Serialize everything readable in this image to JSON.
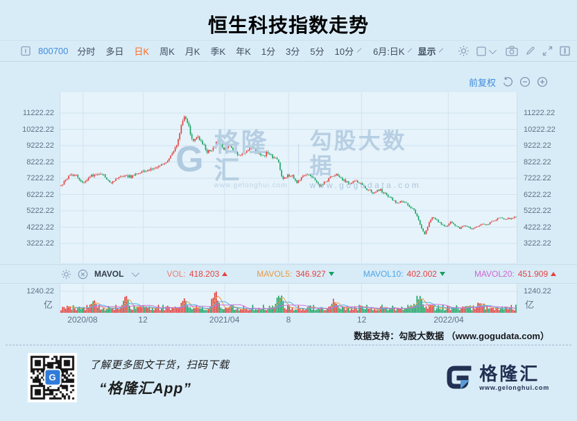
{
  "title": "恒生科技指数走势",
  "toolbar": {
    "symbol": "800700",
    "items": [
      "分时",
      "多日",
      "日K",
      "周K",
      "月K",
      "季K",
      "年K",
      "1分",
      "3分",
      "5分",
      "10分"
    ],
    "active_item": "日K",
    "period_selector": "6月:日K",
    "display_label": "显示"
  },
  "chart_header": {
    "adjust_label": "前复权"
  },
  "watermark": {
    "logo_letter": "G",
    "brand": "格隆汇",
    "brand_url": "www.gelonghui.com",
    "product": "勾股大数据",
    "product_url": "www.gogudata.com"
  },
  "indicators": {
    "name": "MAVOL",
    "vol_label": "VOL:",
    "vol_value": "418.203",
    "mavol5_label": "MAVOL5:",
    "mavol5_value": "346.927",
    "mavol10_label": "MAVOL10:",
    "mavol10_value": "402.002",
    "mavol20_label": "MAVOL20:",
    "mavol20_value": "451.909"
  },
  "volume_axis": {
    "max_label": "1240.22",
    "unit": "亿"
  },
  "support_line": "数据支持：勾股大数据 （www.gogudata.com）",
  "footer": {
    "qr_caption_line1": "了解更多图文干货，扫码下载",
    "qr_caption_line2": "“格隆汇App”",
    "qr_logo_letter": "G",
    "logo_letter": "G",
    "logo_text": "格隆汇",
    "logo_url": "www.gelonghui.com"
  },
  "colors": {
    "up": "#e23a36",
    "down": "#14a05e",
    "grid": "#cfe3ef",
    "accent_blue": "#3f8cdb",
    "active_orange": "#ff6a1e",
    "ma5": "#f09a3c",
    "ma10": "#4fb0ea",
    "ma20": "#cd72d8",
    "icon_gray": "#8aa0b8"
  },
  "chart_data": {
    "type": "candlestick",
    "title": "恒生科技指数走势",
    "x_range": [
      "2020/07",
      "2022/06"
    ],
    "ylim": [
      2030,
      12160
    ],
    "y_ticks": [
      3222.22,
      4222.22,
      5222.22,
      6222.22,
      7222.22,
      8222.22,
      9222.22,
      10222.22,
      11222.22
    ],
    "x_ticks": [
      {
        "label": "2020/08",
        "f": 0.05
      },
      {
        "label": "12",
        "f": 0.182
      },
      {
        "label": "2021/04",
        "f": 0.36
      },
      {
        "label": "8",
        "f": 0.5
      },
      {
        "label": "12",
        "f": 0.66
      },
      {
        "label": "2022/04",
        "f": 0.85
      }
    ],
    "price_anchors": [
      [
        0,
        6800
      ],
      [
        0.015,
        7300
      ],
      [
        0.03,
        7480
      ],
      [
        0.045,
        6950
      ],
      [
        0.06,
        7250
      ],
      [
        0.075,
        7500
      ],
      [
        0.09,
        7550
      ],
      [
        0.1,
        7150
      ],
      [
        0.11,
        6950
      ],
      [
        0.125,
        7250
      ],
      [
        0.14,
        7420
      ],
      [
        0.155,
        7300
      ],
      [
        0.17,
        7550
      ],
      [
        0.185,
        7650
      ],
      [
        0.2,
        7800
      ],
      [
        0.215,
        7950
      ],
      [
        0.23,
        8150
      ],
      [
        0.245,
        8750
      ],
      [
        0.255,
        9400
      ],
      [
        0.265,
        10600
      ],
      [
        0.272,
        11100
      ],
      [
        0.28,
        10500
      ],
      [
        0.29,
        9400
      ],
      [
        0.3,
        9800
      ],
      [
        0.312,
        9250
      ],
      [
        0.322,
        8850
      ],
      [
        0.334,
        9100
      ],
      [
        0.345,
        9550
      ],
      [
        0.357,
        9050
      ],
      [
        0.368,
        9250
      ],
      [
        0.38,
        8850
      ],
      [
        0.392,
        8550
      ],
      [
        0.405,
        8900
      ],
      [
        0.418,
        9150
      ],
      [
        0.43,
        8850
      ],
      [
        0.443,
        8600
      ],
      [
        0.455,
        8800
      ],
      [
        0.468,
        8450
      ],
      [
        0.478,
        8250
      ],
      [
        0.487,
        7050
      ],
      [
        0.497,
        7450
      ],
      [
        0.508,
        7350
      ],
      [
        0.518,
        6950
      ],
      [
        0.53,
        7250
      ],
      [
        0.543,
        7500
      ],
      [
        0.556,
        7150
      ],
      [
        0.568,
        6750
      ],
      [
        0.58,
        7000
      ],
      [
        0.593,
        7300
      ],
      [
        0.606,
        7450
      ],
      [
        0.62,
        7100
      ],
      [
        0.633,
        6900
      ],
      [
        0.646,
        7100
      ],
      [
        0.66,
        6850
      ],
      [
        0.673,
        6550
      ],
      [
        0.686,
        6350
      ],
      [
        0.7,
        6550
      ],
      [
        0.713,
        6250
      ],
      [
        0.726,
        5950
      ],
      [
        0.74,
        5650
      ],
      [
        0.752,
        5850
      ],
      [
        0.764,
        5500
      ],
      [
        0.776,
        5250
      ],
      [
        0.785,
        4700
      ],
      [
        0.793,
        4150
      ],
      [
        0.8,
        3800
      ],
      [
        0.808,
        4450
      ],
      [
        0.817,
        4850
      ],
      [
        0.826,
        4650
      ],
      [
        0.836,
        4400
      ],
      [
        0.846,
        4250
      ],
      [
        0.856,
        4550
      ],
      [
        0.866,
        4350
      ],
      [
        0.876,
        4150
      ],
      [
        0.886,
        4300
      ],
      [
        0.896,
        4200
      ],
      [
        0.906,
        4100
      ],
      [
        0.916,
        4250
      ],
      [
        0.926,
        4450
      ],
      [
        0.936,
        4350
      ],
      [
        0.946,
        4550
      ],
      [
        0.956,
        4700
      ],
      [
        0.968,
        4800
      ],
      [
        0.98,
        4700
      ],
      [
        1,
        4880
      ]
    ],
    "volume": {
      "max": 1240.22,
      "unit": "亿",
      "spikes": [
        {
          "f": 0.07,
          "v": 420
        },
        {
          "f": 0.143,
          "v": 650
        },
        {
          "f": 0.27,
          "v": 700
        },
        {
          "f": 0.338,
          "v": 1240
        },
        {
          "f": 0.48,
          "v": 1100
        },
        {
          "f": 0.6,
          "v": 500
        },
        {
          "f": 0.787,
          "v": 880
        },
        {
          "f": 0.92,
          "v": 520
        }
      ]
    },
    "indicator_values": {
      "VOL": 418.203,
      "MAVOL5": 346.927,
      "MAVOL10": 402.002,
      "MAVOL20": 451.909
    },
    "adjust_mode": "前复权",
    "legend_position": "none",
    "grid": true
  }
}
